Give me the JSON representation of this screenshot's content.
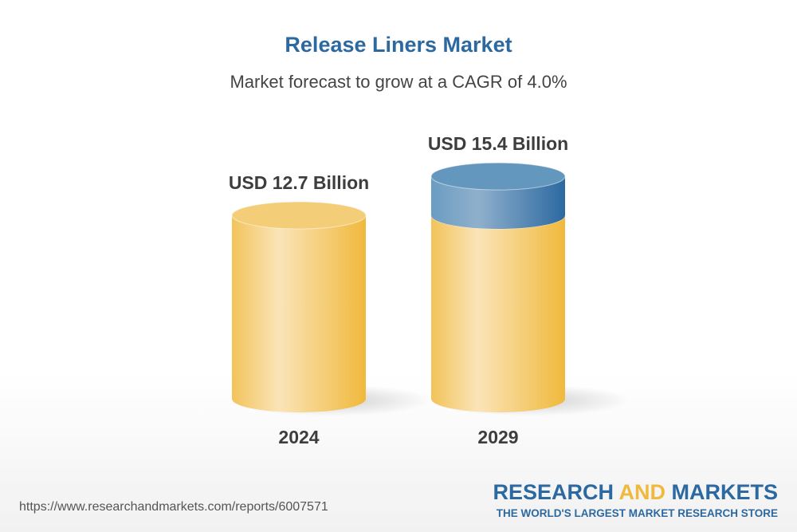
{
  "header": {
    "title": "Release Liners Market",
    "subtitle": "Market forecast to grow at a CAGR of 4.0%"
  },
  "chart_data": {
    "type": "bar",
    "title": "Release Liners Market",
    "subtitle": "Market forecast to grow at a CAGR of 4.0%",
    "categories": [
      "2024",
      "2029"
    ],
    "values": [
      12.7,
      15.4
    ],
    "data_labels": [
      "USD 12.7 Billion",
      "USD 15.4 Billion"
    ],
    "unit": "USD Billion",
    "colors": {
      "base": "#f0b93c",
      "growth": "#2c69a0"
    }
  },
  "footer": {
    "url": "https://www.researchandmarkets.com/reports/6007571",
    "logo_a": "RESEARCH ",
    "logo_and": "AND",
    "logo_b": " MARKETS",
    "tagline": "THE WORLD'S LARGEST MARKET RESEARCH STORE"
  }
}
